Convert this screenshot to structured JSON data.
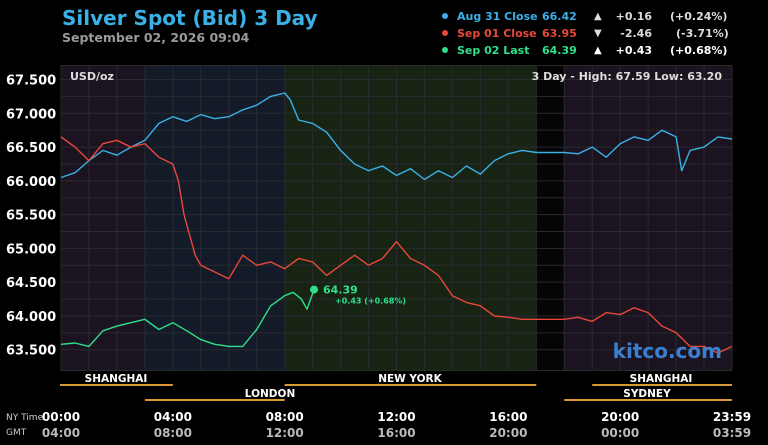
{
  "header": {
    "title": "Silver Spot (Bid) 3 Day",
    "subtitle": "September 02, 2026 09:04"
  },
  "legend": [
    {
      "name": "Aug 31 Close",
      "value": "66.42",
      "arrow": "▲",
      "change": "+0.16",
      "pct": "(+0.24%)",
      "color": "#3bb0e6"
    },
    {
      "name": "Sep 01 Close",
      "value": "63.95",
      "arrow": "▼",
      "change": "-2.46",
      "pct": "(-3.71%)",
      "color": "#e8483a"
    },
    {
      "name": "Sep 02 Last",
      "value": "64.39",
      "arrow": "▲",
      "change": "+0.43",
      "pct": "(+0.68%)",
      "color": "#2ee08a"
    }
  ],
  "chart_data": {
    "type": "line",
    "unit_label": "USD/oz",
    "range_text": "3 Day - High: 67.59  Low: 63.20",
    "ylim": [
      63.2,
      67.7
    ],
    "yticks": [
      "67.500",
      "67.000",
      "66.500",
      "66.000",
      "65.500",
      "65.000",
      "64.500",
      "64.000",
      "63.500"
    ],
    "ytick_values": [
      67.5,
      67.0,
      66.5,
      66.0,
      65.5,
      65.0,
      64.5,
      64.0,
      63.5
    ],
    "xlim": [
      0,
      24
    ],
    "x_ny_labels": [
      "00:00",
      "04:00",
      "08:00",
      "12:00",
      "16:00",
      "20:00",
      "23:59"
    ],
    "x_gmt_labels": [
      "04:00",
      "08:00",
      "12:00",
      "16:00",
      "20:00",
      "00:00",
      "03:59"
    ],
    "x_tick_hours": [
      0,
      4,
      8,
      12,
      16,
      20,
      24
    ],
    "row_labels": {
      "ny": "NY Time",
      "gmt": "GMT"
    },
    "sessions": [
      {
        "name": "SHANGHAI",
        "start": 0,
        "end": 4
      },
      {
        "name": "LONDON",
        "start": 3,
        "end": 8
      },
      {
        "name": "NEW YORK",
        "start": 8,
        "end": 17
      },
      {
        "name": "SHANGHAI",
        "start": 19,
        "end": 24
      },
      {
        "name": "SYDNEY",
        "start": 18,
        "end": 24
      }
    ],
    "current_label": "64.39",
    "current_change": "+0.43 (+0.68%)",
    "current_hour": 9.05,
    "watermark": "kitco.com",
    "series": [
      {
        "name": "Aug 31 Close",
        "color": "#3bb0e6",
        "points": [
          [
            0,
            66.05
          ],
          [
            0.5,
            66.12
          ],
          [
            1,
            66.3
          ],
          [
            1.5,
            66.45
          ],
          [
            2,
            66.38
          ],
          [
            2.5,
            66.5
          ],
          [
            3,
            66.6
          ],
          [
            3.5,
            66.85
          ],
          [
            4,
            66.95
          ],
          [
            4.5,
            66.88
          ],
          [
            5,
            66.98
          ],
          [
            5.5,
            66.92
          ],
          [
            6,
            66.95
          ],
          [
            6.5,
            67.05
          ],
          [
            7,
            67.12
          ],
          [
            7.5,
            67.25
          ],
          [
            8,
            67.3
          ],
          [
            8.2,
            67.2
          ],
          [
            8.5,
            66.9
          ],
          [
            9,
            66.85
          ],
          [
            9.5,
            66.72
          ],
          [
            10,
            66.45
          ],
          [
            10.5,
            66.25
          ],
          [
            11,
            66.15
          ],
          [
            11.5,
            66.22
          ],
          [
            12,
            66.08
          ],
          [
            12.5,
            66.18
          ],
          [
            13,
            66.02
          ],
          [
            13.5,
            66.15
          ],
          [
            14,
            66.05
          ],
          [
            14.5,
            66.22
          ],
          [
            15,
            66.1
          ],
          [
            15.5,
            66.3
          ],
          [
            16,
            66.4
          ],
          [
            16.5,
            66.45
          ],
          [
            17,
            66.42
          ],
          [
            18,
            66.42
          ],
          [
            18.5,
            66.4
          ],
          [
            19,
            66.5
          ],
          [
            19.5,
            66.35
          ],
          [
            20,
            66.55
          ],
          [
            20.5,
            66.65
          ],
          [
            21,
            66.6
          ],
          [
            21.5,
            66.75
          ],
          [
            22,
            66.65
          ],
          [
            22.2,
            66.15
          ],
          [
            22.5,
            66.45
          ],
          [
            23,
            66.5
          ],
          [
            23.5,
            66.65
          ],
          [
            24,
            66.62
          ]
        ]
      },
      {
        "name": "Sep 01 Close",
        "color": "#e8483a",
        "points": [
          [
            0,
            66.65
          ],
          [
            0.5,
            66.5
          ],
          [
            1,
            66.3
          ],
          [
            1.5,
            66.55
          ],
          [
            2,
            66.6
          ],
          [
            2.5,
            66.5
          ],
          [
            3,
            66.55
          ],
          [
            3.5,
            66.35
          ],
          [
            4,
            66.25
          ],
          [
            4.2,
            66.0
          ],
          [
            4.4,
            65.5
          ],
          [
            4.6,
            65.2
          ],
          [
            4.8,
            64.9
          ],
          [
            5,
            64.75
          ],
          [
            5.5,
            64.65
          ],
          [
            6,
            64.55
          ],
          [
            6.5,
            64.9
          ],
          [
            7,
            64.75
          ],
          [
            7.5,
            64.8
          ],
          [
            8,
            64.7
          ],
          [
            8.5,
            64.85
          ],
          [
            9,
            64.8
          ],
          [
            9.5,
            64.6
          ],
          [
            10,
            64.75
          ],
          [
            10.5,
            64.9
          ],
          [
            11,
            64.75
          ],
          [
            11.5,
            64.85
          ],
          [
            12,
            65.1
          ],
          [
            12.5,
            64.85
          ],
          [
            13,
            64.75
          ],
          [
            13.5,
            64.6
          ],
          [
            14,
            64.3
          ],
          [
            14.5,
            64.2
          ],
          [
            15,
            64.15
          ],
          [
            15.5,
            64.0
          ],
          [
            16,
            63.98
          ],
          [
            16.5,
            63.95
          ],
          [
            17,
            63.95
          ],
          [
            18,
            63.95
          ],
          [
            18.5,
            63.98
          ],
          [
            19,
            63.92
          ],
          [
            19.5,
            64.05
          ],
          [
            20,
            64.02
          ],
          [
            20.5,
            64.12
          ],
          [
            21,
            64.05
          ],
          [
            21.5,
            63.85
          ],
          [
            22,
            63.75
          ],
          [
            22.5,
            63.55
          ],
          [
            23,
            63.55
          ],
          [
            23.5,
            63.45
          ],
          [
            24,
            63.55
          ]
        ]
      },
      {
        "name": "Sep 02 Last",
        "color": "#2ee08a",
        "points": [
          [
            0,
            63.58
          ],
          [
            0.5,
            63.6
          ],
          [
            1,
            63.55
          ],
          [
            1.5,
            63.78
          ],
          [
            2,
            63.85
          ],
          [
            2.5,
            63.9
          ],
          [
            3,
            63.95
          ],
          [
            3.5,
            63.8
          ],
          [
            4,
            63.9
          ],
          [
            4.5,
            63.78
          ],
          [
            5,
            63.65
          ],
          [
            5.5,
            63.58
          ],
          [
            6,
            63.55
          ],
          [
            6.5,
            63.55
          ],
          [
            7,
            63.8
          ],
          [
            7.5,
            64.15
          ],
          [
            8,
            64.3
          ],
          [
            8.3,
            64.35
          ],
          [
            8.6,
            64.25
          ],
          [
            8.8,
            64.1
          ],
          [
            9.05,
            64.39
          ]
        ]
      }
    ]
  }
}
